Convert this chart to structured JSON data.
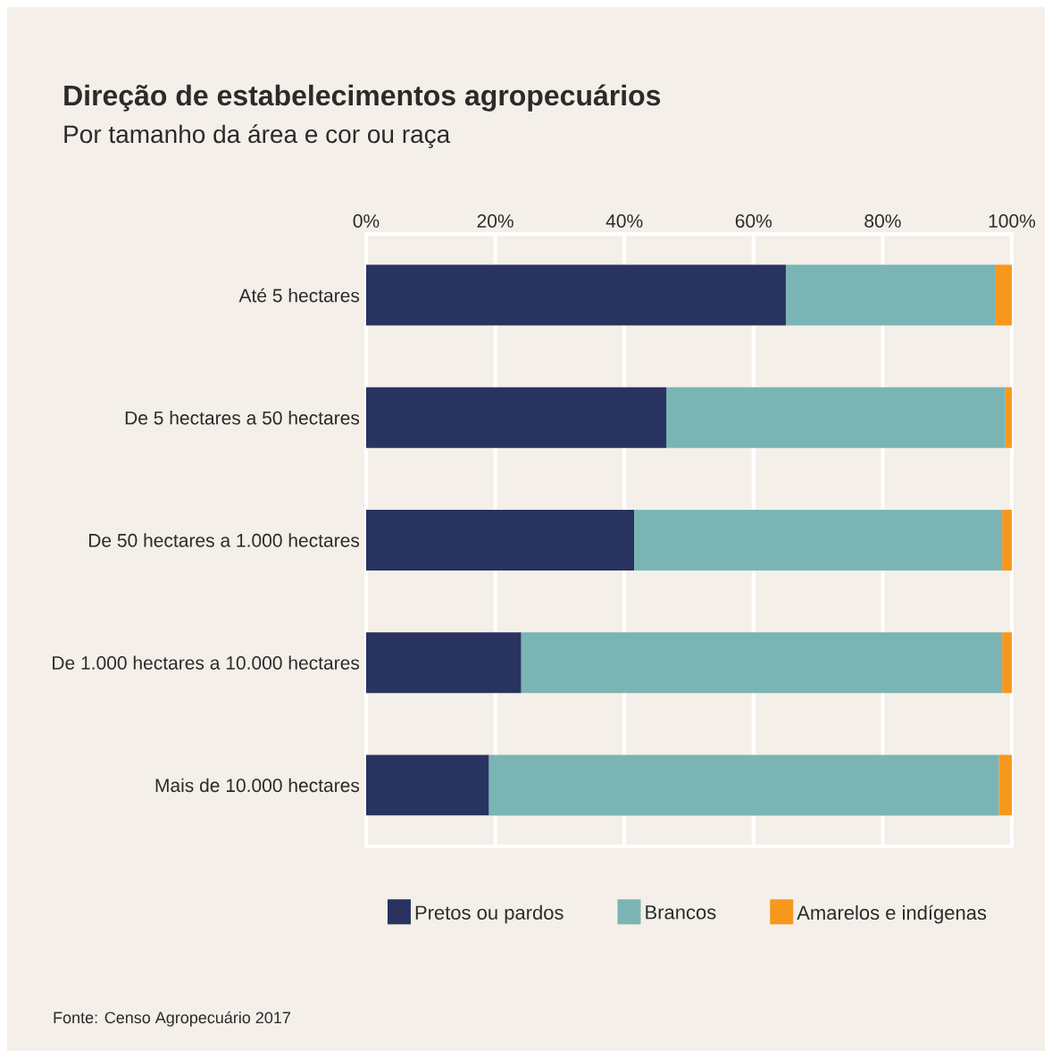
{
  "chart_data": {
    "type": "bar",
    "orientation": "horizontal",
    "stacked": true,
    "title": "Direção de estabelecimentos agropecuários",
    "subtitle": "Por tamanho da área e cor ou raça",
    "categories": [
      "Até 5 hectares",
      "De 5 hectares a 50 hectares",
      "De 50 hectares a 1.000 hectares",
      "De 1.000 hectares a 10.000 hectares",
      "Mais de 10.000 hectares"
    ],
    "series": [
      {
        "name": "Pretos ou pardos",
        "color": "#283360",
        "values": [
          65,
          46.5,
          41.5,
          24,
          19
        ]
      },
      {
        "name": "Brancos",
        "color": "#7ab5b4",
        "values": [
          32.5,
          52.5,
          57,
          74.5,
          79
        ]
      },
      {
        "name": "Amarelos e indígenas",
        "color": "#f7981d",
        "values": [
          2.5,
          1,
          1.5,
          1.5,
          2
        ]
      }
    ],
    "xlim": [
      0,
      100
    ],
    "xticks": [
      {
        "value": 0,
        "label": "0%"
      },
      {
        "value": 20,
        "label": "20%"
      },
      {
        "value": 40,
        "label": "40%"
      },
      {
        "value": 60,
        "label": "60%"
      },
      {
        "value": 80,
        "label": "80%"
      },
      {
        "value": 100,
        "label": "100%"
      }
    ],
    "grid": "x",
    "legend": "bottom",
    "annotations": [
      "Fonte: Censo Agropecuário 2017"
    ]
  }
}
